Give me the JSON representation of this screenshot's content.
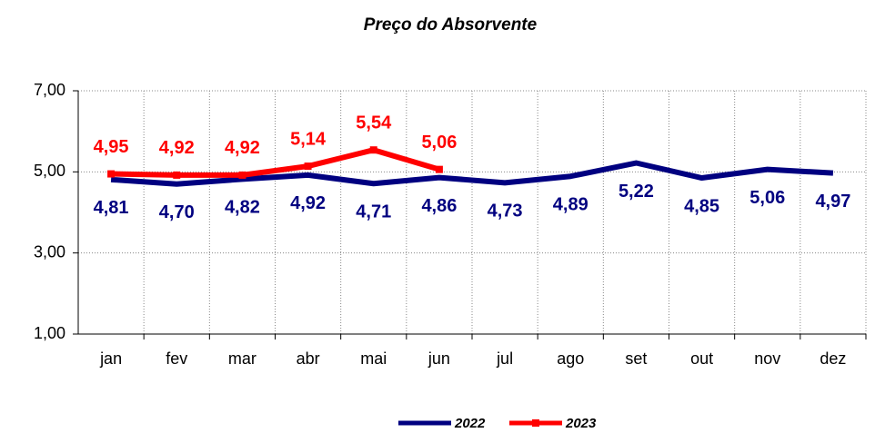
{
  "chart_data": {
    "type": "line",
    "title": "Preço do Absorvente",
    "categories": [
      "jan",
      "fev",
      "mar",
      "abr",
      "mai",
      "jun",
      "jul",
      "ago",
      "set",
      "out",
      "nov",
      "dez"
    ],
    "series": [
      {
        "name": "2022",
        "color": "#000080",
        "values": [
          4.81,
          4.7,
          4.82,
          4.92,
          4.71,
          4.86,
          4.73,
          4.89,
          5.22,
          4.85,
          5.06,
          4.97
        ],
        "value_labels": [
          "4,81",
          "4,70",
          "4,82",
          "4,92",
          "4,71",
          "4,86",
          "4,73",
          "4,89",
          "5,22",
          "4,85",
          "5,06",
          "4,97"
        ]
      },
      {
        "name": "2023",
        "color": "#ff0000",
        "values": [
          4.95,
          4.92,
          4.92,
          5.14,
          5.54,
          5.06,
          null,
          null,
          null,
          null,
          null,
          null
        ],
        "value_labels": [
          "4,95",
          "4,92",
          "4,92",
          "5,14",
          "5,54",
          "5,06",
          null,
          null,
          null,
          null,
          null,
          null
        ]
      }
    ],
    "ylim": [
      1,
      7
    ],
    "yticks": [
      {
        "value": 1,
        "label": "1,00"
      },
      {
        "value": 3,
        "label": "3,00"
      },
      {
        "value": 5,
        "label": "5,00"
      },
      {
        "value": 7,
        "label": "7,00"
      }
    ],
    "grid": true,
    "legend": "bottom"
  }
}
